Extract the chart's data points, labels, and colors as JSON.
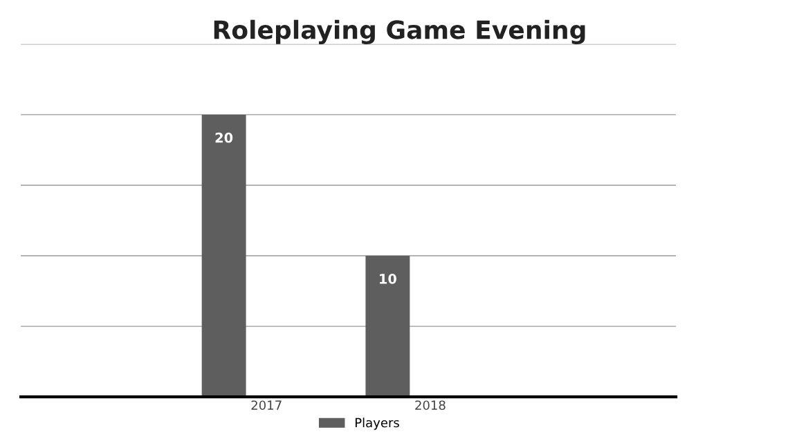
{
  "chart_data": {
    "type": "bar",
    "title": "Roleplaying Game Evening",
    "categories": [
      null,
      "2017",
      "2018",
      null
    ],
    "series": [
      {
        "name": "Players",
        "color": "#5e5e5e",
        "values": [
          null,
          20,
          10,
          null
        ]
      }
    ],
    "ylim": [
      0,
      25
    ],
    "yticks": [
      {
        "value": 0,
        "label": null
      },
      {
        "value": 5,
        "label": null
      },
      {
        "value": 10,
        "label": null
      },
      {
        "value": 15,
        "label": null
      },
      {
        "value": 20,
        "label": null
      },
      {
        "value": 25,
        "label": null
      }
    ],
    "tick_labels": "x",
    "grid": "y",
    "legend": "bottom",
    "data_labels": true
  }
}
